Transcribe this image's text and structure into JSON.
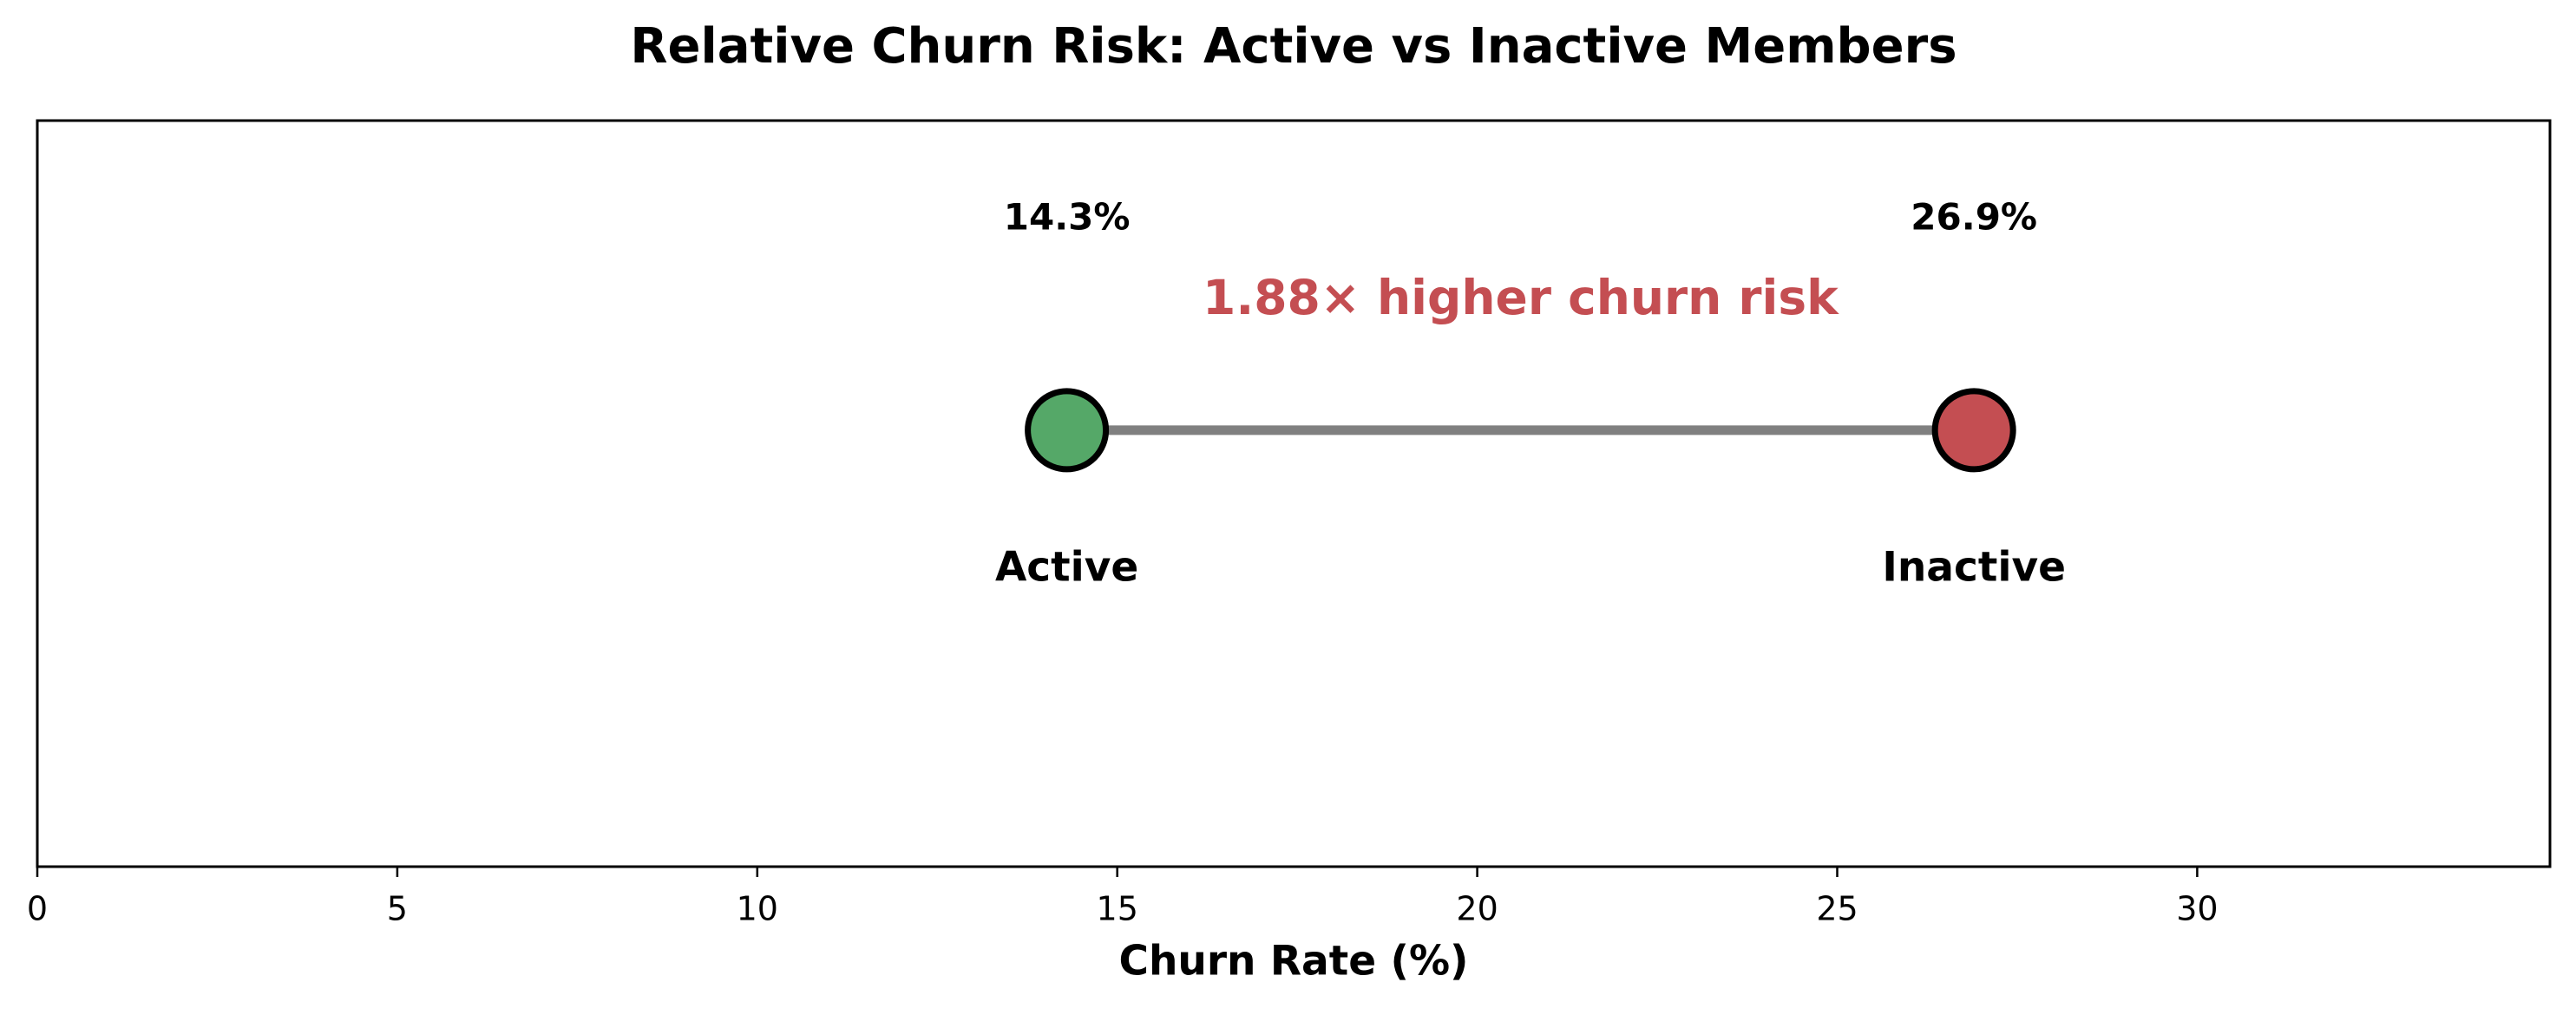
{
  "chart_data": {
    "type": "scatter",
    "subtype": "dumbbell",
    "title": "Relative Churn Risk: Active vs Inactive Members",
    "xlabel": "Churn Rate (%)",
    "ylabel": "",
    "xlim": [
      0,
      34.9
    ],
    "xticks": [
      0,
      5,
      10,
      15,
      20,
      25,
      30
    ],
    "grid": false,
    "points": [
      {
        "label": "Active",
        "value": 14.3,
        "value_label": "14.3%",
        "color": "#55a868"
      },
      {
        "label": "Inactive",
        "value": 26.9,
        "value_label": "26.9%",
        "color": "#c44e52"
      }
    ],
    "connector_color": "#808080",
    "annotation": {
      "text": "1.88× higher churn risk",
      "color": "#c44e52"
    }
  }
}
